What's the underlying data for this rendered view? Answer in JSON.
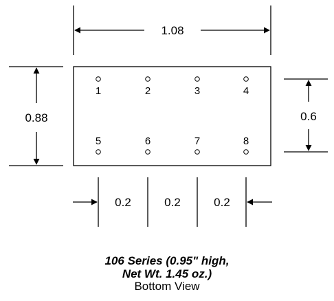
{
  "dimensions": {
    "width_label": "1.08",
    "height_label": "0.88",
    "pin_row_spacing_label": "0.6",
    "pin_pitch_labels": [
      "0.2",
      "0.2",
      "0.2"
    ]
  },
  "pins": {
    "top_row": [
      "1",
      "2",
      "3",
      "4"
    ],
    "bottom_row": [
      "5",
      "6",
      "7",
      "8"
    ]
  },
  "caption": {
    "line1": "106 Series (0.95\" high,",
    "line2": "Net Wt. 1.45 oz.)",
    "line3": "Bottom View"
  }
}
